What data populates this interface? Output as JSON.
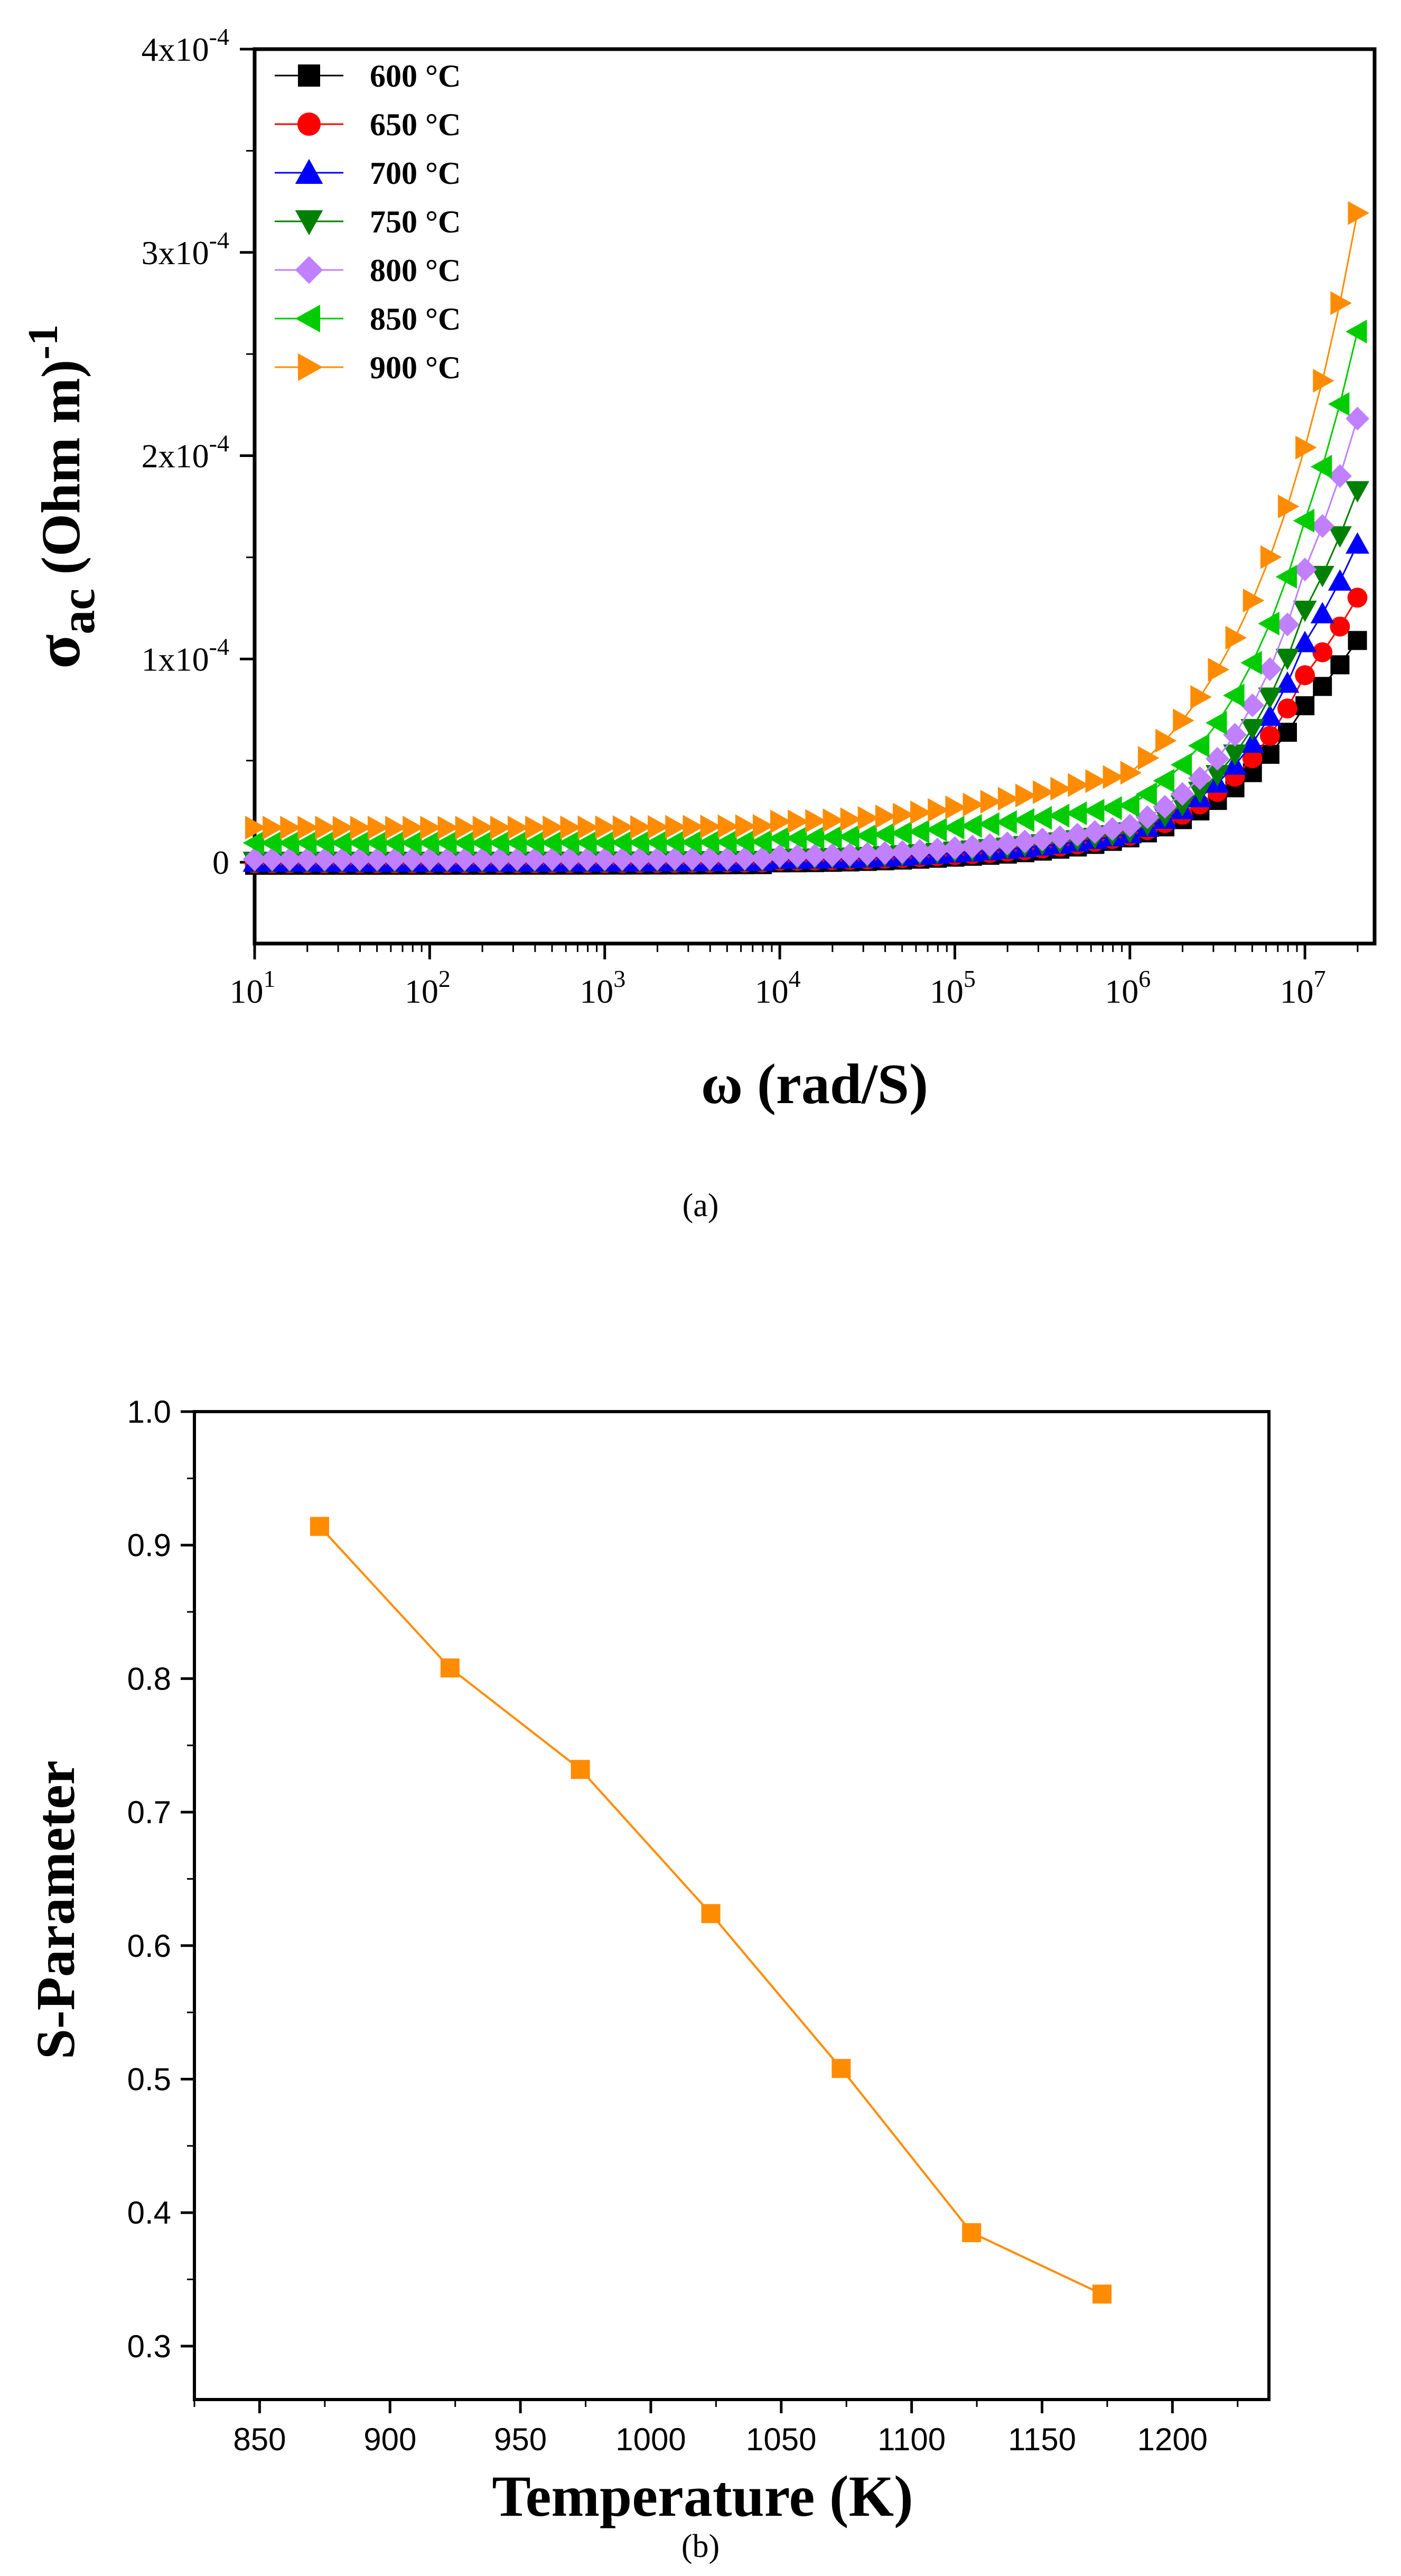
{
  "chart_data": [
    {
      "type": "line",
      "panel_caption": "(a)",
      "ylabel": {
        "symbol": "σ",
        "sub": "ac",
        "unit": " (Ohm m)",
        "sup": "-1"
      },
      "xlabel": "ω  (rad/S)",
      "x_scale": "log",
      "xlim": [
        10,
        25000000
      ],
      "ylim": [
        -4e-05,
        0.0004
      ],
      "x_ticks": [
        {
          "base": "10",
          "exp": "1",
          "value": 10
        },
        {
          "base": "10",
          "exp": "2",
          "value": 100
        },
        {
          "base": "10",
          "exp": "3",
          "value": 1000
        },
        {
          "base": "10",
          "exp": "4",
          "value": 10000
        },
        {
          "base": "10",
          "exp": "5",
          "value": 100000
        },
        {
          "base": "10",
          "exp": "6",
          "value": 1000000
        },
        {
          "base": "10",
          "exp": "7",
          "value": 10000000
        }
      ],
      "y_ticks": [
        {
          "label": "0",
          "value": 0
        },
        {
          "label": "1x10",
          "exp": "-4",
          "value": 0.0001
        },
        {
          "label": "2x10",
          "exp": "-4",
          "value": 0.0002
        },
        {
          "label": "3x10",
          "exp": "-4",
          "value": 0.0003
        },
        {
          "label": "4x10",
          "exp": "-4",
          "value": 0.0004
        }
      ],
      "legend_position": "top-left",
      "series": [
        {
          "name": "600 °C",
          "color": "#000000",
          "marker": "square",
          "base": -1.5e-06,
          "values_at_ticks": {
            "1e5": 2.5e-06,
            "1e6": 1.2e-05,
            "1e7": 7.7e-05
          },
          "end": 0.000114
        },
        {
          "name": "650 °C",
          "color": "#ff0000",
          "marker": "circle",
          "base": -5e-07,
          "values_at_ticks": {
            "1e5": 3.5e-06,
            "1e6": 1.3e-05,
            "1e7": 9.2e-05
          },
          "end": 0.000136
        },
        {
          "name": "700 °C",
          "color": "#0000ff",
          "marker": "triangle-up",
          "base": 0.0,
          "values_at_ticks": {
            "1e5": 4.5e-06,
            "1e6": 1.4e-05,
            "1e7": 0.000108
          },
          "end": 0.000164
        },
        {
          "name": "750 °C",
          "color": "#008000",
          "marker": "triangle-down",
          "base": 5e-07,
          "values_at_ticks": {
            "1e5": 5.5e-06,
            "1e6": 1.5e-05,
            "1e7": 0.000124
          },
          "end": 0.000192
        },
        {
          "name": "800 °C",
          "color": "#c080ff",
          "marker": "diamond",
          "base": 1.5e-06,
          "values_at_ticks": {
            "1e5": 7e-06,
            "1e6": 1.8e-05,
            "1e7": 0.000144
          },
          "end": 0.00023
        },
        {
          "name": "850 °C",
          "color": "#00cc00",
          "marker": "triangle-left",
          "base": 9.5e-06,
          "values_at_ticks": {
            "1e5": 1.7e-05,
            "1e6": 2.8e-05,
            "1e7": 0.000168
          },
          "end": 0.000276
        },
        {
          "name": "900 °C",
          "color": "#ff8c00",
          "marker": "triangle-right",
          "base": 1.7e-05,
          "values_at_ticks": {
            "1e5": 2.7e-05,
            "1e6": 4.4e-05,
            "1e7": 0.000204
          },
          "end": 0.000338
        }
      ]
    },
    {
      "type": "line",
      "panel_caption": "(b)",
      "xlabel": "Temperature (K)",
      "ylabel": "S-Parameter",
      "xlim": [
        825,
        1237
      ],
      "ylim": [
        0.26,
        1.0
      ],
      "x_ticks": [
        850,
        900,
        950,
        1000,
        1050,
        1100,
        1150,
        1200
      ],
      "y_ticks": [
        "0.3",
        "0.4",
        "0.5",
        "0.6",
        "0.7",
        "0.8",
        "0.9",
        "1.0"
      ],
      "series": [
        {
          "name": "S-Parameter",
          "color": "#ff8c00",
          "marker": "square",
          "x": [
            873,
            923,
            973,
            1023,
            1073,
            1123,
            1173
          ],
          "y": [
            0.914,
            0.808,
            0.732,
            0.624,
            0.508,
            0.385,
            0.339
          ]
        }
      ]
    }
  ]
}
